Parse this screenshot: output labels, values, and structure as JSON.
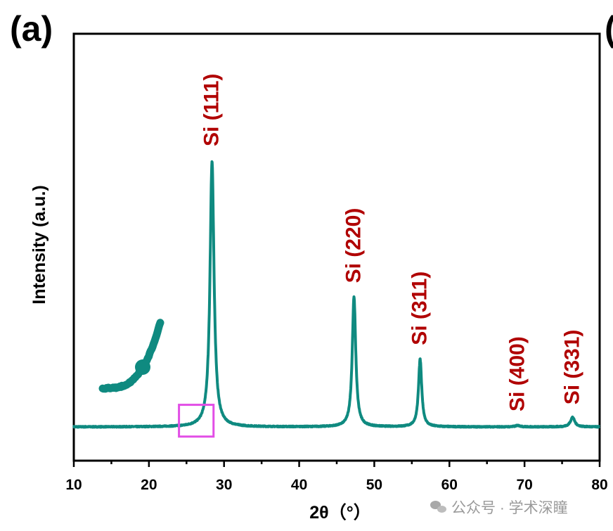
{
  "panel_label": "(a)",
  "next_panel_label": "(",
  "watermark": "公众号 · 学术深瞳",
  "watermark_icon": "wechat-icon",
  "colors": {
    "trace": "#0f8a80",
    "peak_label": "#b00000",
    "highlight_box": "#e24ee6",
    "axis": "#000000"
  },
  "chart_data": {
    "type": "line",
    "title": "",
    "xlabel": "2θ（°）",
    "ylabel": "Intensity (a.u.)",
    "xlim": [
      10,
      80
    ],
    "ylim": [
      0,
      100
    ],
    "xticks": [
      10,
      20,
      30,
      40,
      50,
      60,
      70,
      80
    ],
    "grid": false,
    "legend": "none",
    "y_tick_labels": false,
    "baseline": 4,
    "series": [
      {
        "peaks": [
          {
            "x": 28.4,
            "height": 100,
            "label": "Si (111)"
          },
          {
            "x": 47.3,
            "height": 51,
            "label": "Si (220)"
          },
          {
            "x": 56.1,
            "height": 28.5,
            "label": "Si (311)"
          },
          {
            "x": 69.1,
            "height": 4.5,
            "label": "Si (400)"
          },
          {
            "x": 76.4,
            "height": 7.5,
            "label": "Si (331)"
          }
        ]
      }
    ],
    "highlight_box": {
      "x": [
        24,
        28.6
      ],
      "y": [
        0.5,
        12
      ]
    }
  }
}
